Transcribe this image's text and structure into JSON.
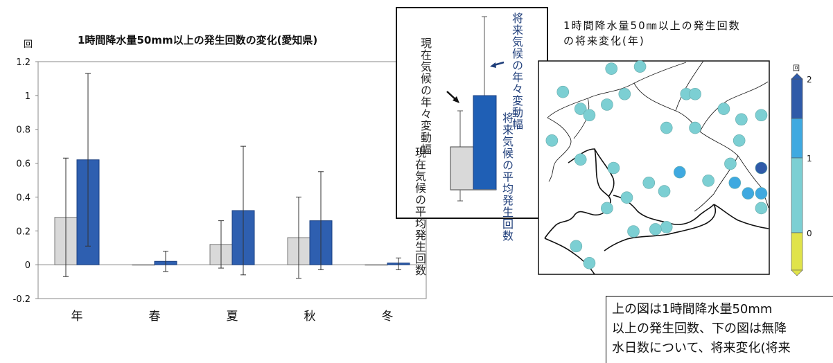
{
  "chart_data": [
    {
      "type": "bar",
      "title": "1時間降水量50mm以上の発生回数の変化(愛知県)",
      "ylabel": "回",
      "ylim": [
        -0.2,
        1.2
      ],
      "yticks": [
        "1.2",
        "1",
        "0.8",
        "0.6",
        "0.4",
        "0.2",
        "0",
        "-0.2"
      ],
      "categories": [
        "年",
        "春",
        "夏",
        "秋",
        "冬"
      ],
      "series": [
        {
          "color": "#d9d9d9",
          "values": [
            0.28,
            0.0,
            0.12,
            0.16,
            0.0
          ],
          "error_low": [
            -0.07,
            0.0,
            -0.02,
            -0.08,
            0.0
          ],
          "error_high": [
            0.63,
            0.0,
            0.26,
            0.4,
            0.0
          ]
        },
        {
          "color": "#2e5fb0",
          "values": [
            0.62,
            0.02,
            0.32,
            0.26,
            0.01
          ],
          "error_low": [
            0.11,
            -0.04,
            -0.06,
            -0.03,
            -0.03
          ],
          "error_high": [
            1.13,
            0.08,
            0.7,
            0.55,
            0.04
          ]
        }
      ],
      "grid": false
    },
    {
      "type": "diagram",
      "labels": {
        "cur_range": "現在気候の年々変動幅",
        "fut_range": "将来気候の年々変動幅",
        "cur_mean": "現在気候の平均発生回数",
        "fut_mean": "将来気候の平均発生回数"
      }
    },
    {
      "type": "scatter",
      "title_line1": "1時間降水量50㎜以上の発生回数",
      "title_line2": "の将来変化(年)",
      "colorbar": {
        "unit": "回",
        "ticks": [
          "2",
          "1",
          "0"
        ],
        "colors": [
          "#2f5aa8",
          "#3fa9e0",
          "#7ccfd3",
          "#e0e34a"
        ]
      },
      "points": [
        {
          "x": 0.29,
          "y": 0.97,
          "v": 0.5
        },
        {
          "x": 0.42,
          "y": 0.98,
          "v": 0.5
        },
        {
          "x": 0.07,
          "y": 0.86,
          "v": 0.5
        },
        {
          "x": 0.15,
          "y": 0.78,
          "v": 0.5
        },
        {
          "x": 0.19,
          "y": 0.75,
          "v": 0.5
        },
        {
          "x": 0.27,
          "y": 0.8,
          "v": 0.5
        },
        {
          "x": 0.35,
          "y": 0.85,
          "v": 0.5
        },
        {
          "x": 0.63,
          "y": 0.85,
          "v": 0.5
        },
        {
          "x": 0.67,
          "y": 0.85,
          "v": 0.5
        },
        {
          "x": 0.8,
          "y": 0.78,
          "v": 0.5
        },
        {
          "x": 0.88,
          "y": 0.73,
          "v": 0.5
        },
        {
          "x": 0.97,
          "y": 0.75,
          "v": 0.5
        },
        {
          "x": 0.54,
          "y": 0.69,
          "v": 0.5
        },
        {
          "x": 0.67,
          "y": 0.69,
          "v": 0.5
        },
        {
          "x": 0.87,
          "y": 0.63,
          "v": 0.5
        },
        {
          "x": 0.02,
          "y": 0.63,
          "v": 0.5
        },
        {
          "x": 0.15,
          "y": 0.54,
          "v": 0.5
        },
        {
          "x": 0.3,
          "y": 0.5,
          "v": 0.5
        },
        {
          "x": 0.6,
          "y": 0.48,
          "v": 1.5
        },
        {
          "x": 0.83,
          "y": 0.52,
          "v": 0.5
        },
        {
          "x": 0.97,
          "y": 0.5,
          "v": 2.5
        },
        {
          "x": 0.46,
          "y": 0.43,
          "v": 0.5
        },
        {
          "x": 0.73,
          "y": 0.44,
          "v": 0.5
        },
        {
          "x": 0.85,
          "y": 0.43,
          "v": 1.5
        },
        {
          "x": 0.53,
          "y": 0.39,
          "v": 0.5
        },
        {
          "x": 0.91,
          "y": 0.38,
          "v": 1.5
        },
        {
          "x": 0.97,
          "y": 0.38,
          "v": 1.5
        },
        {
          "x": 0.36,
          "y": 0.36,
          "v": 0.5
        },
        {
          "x": 0.27,
          "y": 0.31,
          "v": 0.5
        },
        {
          "x": 0.97,
          "y": 0.31,
          "v": 0.5
        },
        {
          "x": 0.54,
          "y": 0.22,
          "v": 0.5
        },
        {
          "x": 0.49,
          "y": 0.21,
          "v": 0.5
        },
        {
          "x": 0.39,
          "y": 0.2,
          "v": 0.5
        },
        {
          "x": 0.13,
          "y": 0.13,
          "v": 0.5
        },
        {
          "x": 0.19,
          "y": 0.05,
          "v": 0.5
        }
      ]
    }
  ],
  "note_lines": [
    "上の図は1時間降水量50mm",
    "以上の発生回数、下の図は無降",
    "水日数について、将来変化(将来"
  ]
}
